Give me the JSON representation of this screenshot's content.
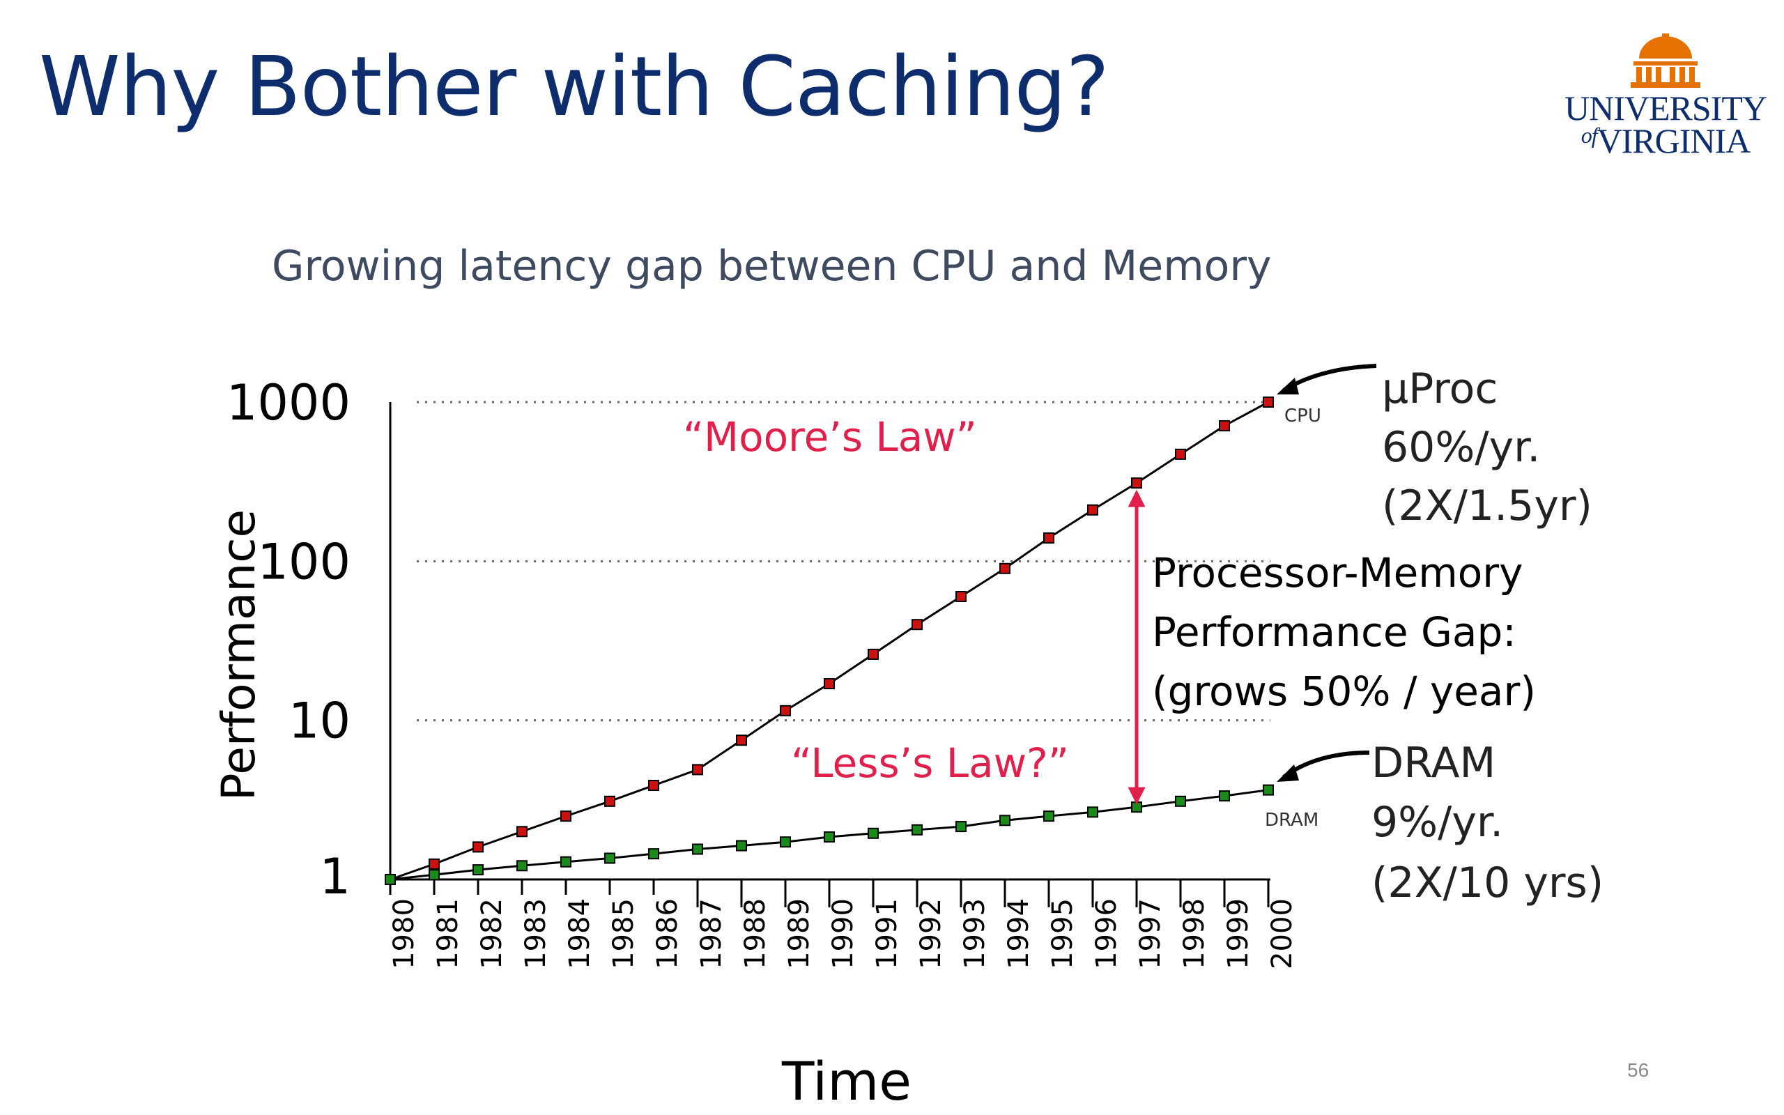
{
  "slide": {
    "title": "Why Bother with Caching?",
    "subtitle": "Growing latency gap between CPU and Memory",
    "page_number": "56",
    "logo": {
      "line1": "UNIVERSITY",
      "line2": "VIRGINIA",
      "of": "of"
    }
  },
  "colors": {
    "title": "#0d2d6c",
    "cpu_marker": "#cc1111",
    "dram_marker": "#1a8a1a",
    "gap_arrow": "#e0204a",
    "logo_orange": "#e57200"
  },
  "chart_data": {
    "type": "line",
    "xlabel": "Time",
    "ylabel": "Performance",
    "y_scale": "log",
    "ylim": [
      1,
      1000
    ],
    "yticks": [
      "1",
      "10",
      "100",
      "1000"
    ],
    "grid": "dotted horizontal at 10, 100, 1000",
    "x": [
      "1980",
      "1981",
      "1982",
      "1983",
      "1984",
      "1985",
      "1986",
      "1987",
      "1988",
      "1989",
      "1990",
      "1991",
      "1992",
      "1993",
      "1994",
      "1995",
      "1996",
      "1997",
      "1998",
      "1999",
      "2000"
    ],
    "series": [
      {
        "name": "CPU",
        "values": [
          1,
          1.25,
          1.6,
          2.0,
          2.5,
          3.1,
          3.9,
          4.9,
          7.5,
          11.5,
          17,
          26,
          40,
          60,
          90,
          140,
          210,
          310,
          470,
          710,
          1000
        ]
      },
      {
        "name": "DRAM",
        "values": [
          1,
          1.07,
          1.15,
          1.22,
          1.29,
          1.36,
          1.45,
          1.55,
          1.63,
          1.72,
          1.85,
          1.95,
          2.05,
          2.15,
          2.35,
          2.5,
          2.65,
          2.85,
          3.1,
          3.35,
          3.65
        ]
      }
    ],
    "annotations": {
      "moores_law": "“Moore’s Law”",
      "less_law": "“Less’s Law?”",
      "cpu_tag": "CPU",
      "dram_tag": "DRAM",
      "uproc": [
        "µProc",
        "60%/yr.",
        "(2X/1.5yr)"
      ],
      "dram": [
        "DRAM",
        "9%/yr.",
        "(2X/10 yrs)"
      ],
      "gap": [
        "Processor-Memory",
        "Performance Gap:",
        "(grows 50% / year)"
      ]
    }
  }
}
